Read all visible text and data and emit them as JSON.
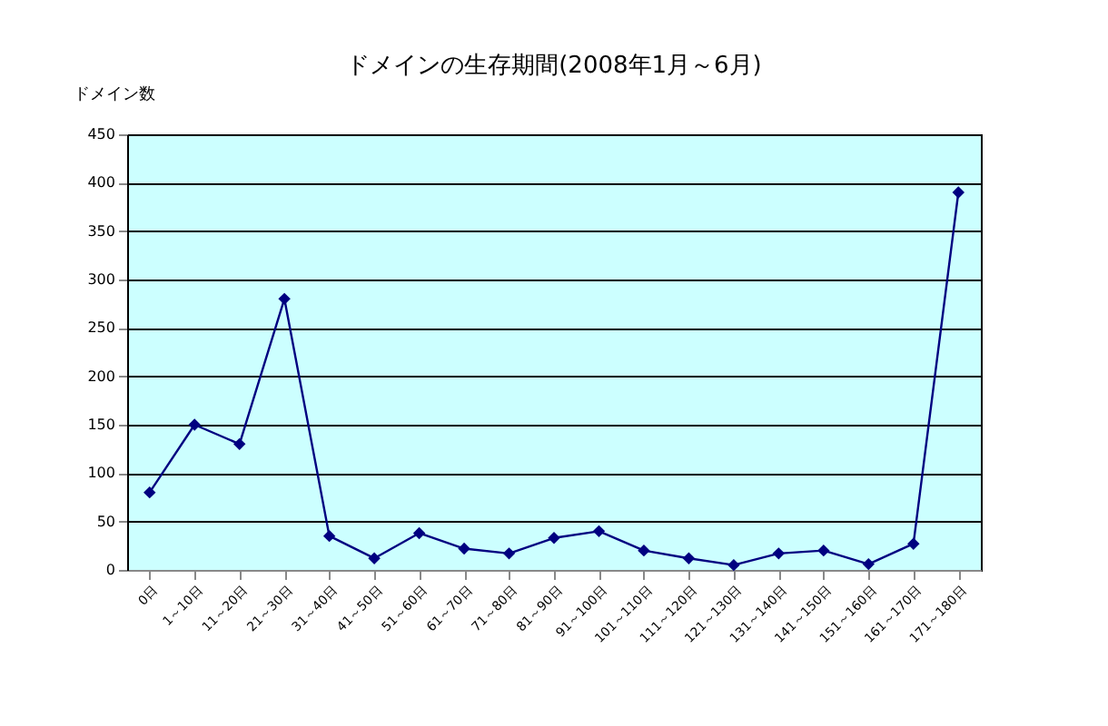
{
  "chart_data": {
    "type": "line",
    "title": "ドメインの生存期間(2008年1月～6月)",
    "ylabel": "ドメイン数",
    "categories": [
      "0日",
      "1～10日",
      "11～20日",
      "21～30日",
      "31～40日",
      "41～50日",
      "51～60日",
      "61～70日",
      "71～80日",
      "81～90日",
      "91～100日",
      "101～110日",
      "111～120日",
      "121～130日",
      "131～140日",
      "141～150日",
      "151～160日",
      "161～170日",
      "171～180日"
    ],
    "series": [
      {
        "color": "#000080",
        "values": [
          80,
          150,
          130,
          280,
          35,
          12,
          38,
          22,
          17,
          33,
          40,
          20,
          12,
          5,
          17,
          20,
          6,
          27,
          390
        ]
      }
    ],
    "ylim": [
      0,
      450
    ],
    "yticks": [
      0,
      50,
      100,
      150,
      200,
      250,
      300,
      350,
      400,
      450
    ],
    "grid": "y",
    "marker": "diamond",
    "line_style": "solid"
  }
}
